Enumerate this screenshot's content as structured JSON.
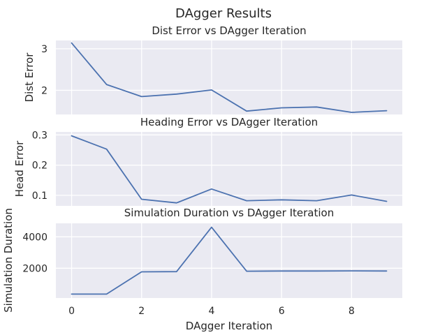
{
  "figure_title": "DAgger Results",
  "chart_data": [
    {
      "type": "line",
      "title": "Dist Error vs DAgger Iteration",
      "xlabel": "",
      "ylabel": "Dist Error",
      "x": [
        0,
        1,
        2,
        3,
        4,
        5,
        6,
        7,
        8,
        9
      ],
      "series": [
        {
          "values": [
            3.14,
            2.14,
            1.85,
            1.91,
            2.01,
            1.5,
            1.58,
            1.6,
            1.47,
            1.51
          ],
          "color": "#4c72b0"
        }
      ],
      "xlim": [
        -0.45,
        9.45
      ],
      "ylim": [
        1.42,
        3.2
      ],
      "xticks": [
        0,
        2,
        4,
        6,
        8
      ],
      "yticks": [
        2,
        3
      ],
      "ytick_labels": [
        "2",
        "3"
      ],
      "show_xtick_labels": false,
      "grid": true
    },
    {
      "type": "line",
      "title": "Heading Error vs DAgger Iteration",
      "xlabel": "",
      "ylabel": "Head Error",
      "x": [
        0,
        1,
        2,
        3,
        4,
        5,
        6,
        7,
        8,
        9
      ],
      "series": [
        {
          "values": [
            0.297,
            0.253,
            0.087,
            0.075,
            0.121,
            0.082,
            0.085,
            0.082,
            0.101,
            0.08
          ],
          "color": "#4c72b0"
        }
      ],
      "xlim": [
        -0.45,
        9.45
      ],
      "ylim": [
        0.065,
        0.31
      ],
      "xticks": [
        0,
        2,
        4,
        6,
        8
      ],
      "yticks": [
        0.1,
        0.2,
        0.3
      ],
      "ytick_labels": [
        "0.1",
        "0.2",
        "0.3"
      ],
      "show_xtick_labels": false,
      "grid": true
    },
    {
      "type": "line",
      "title": "Simulation Duration vs DAgger Iteration",
      "xlabel": "DAgger Iteration",
      "ylabel": "Simulation Duration",
      "x": [
        0,
        1,
        2,
        3,
        4,
        5,
        6,
        7,
        8,
        9
      ],
      "series": [
        {
          "values": [
            350,
            350,
            1770,
            1780,
            4610,
            1810,
            1820,
            1820,
            1830,
            1820
          ],
          "color": "#4c72b0"
        }
      ],
      "xlim": [
        -0.45,
        9.45
      ],
      "ylim": [
        100,
        4860
      ],
      "xticks": [
        0,
        2,
        4,
        6,
        8
      ],
      "xtick_labels": [
        "0",
        "2",
        "4",
        "6",
        "8"
      ],
      "yticks": [
        2000,
        4000
      ],
      "ytick_labels": [
        "2000",
        "4000"
      ],
      "show_xtick_labels": true,
      "grid": true
    }
  ]
}
